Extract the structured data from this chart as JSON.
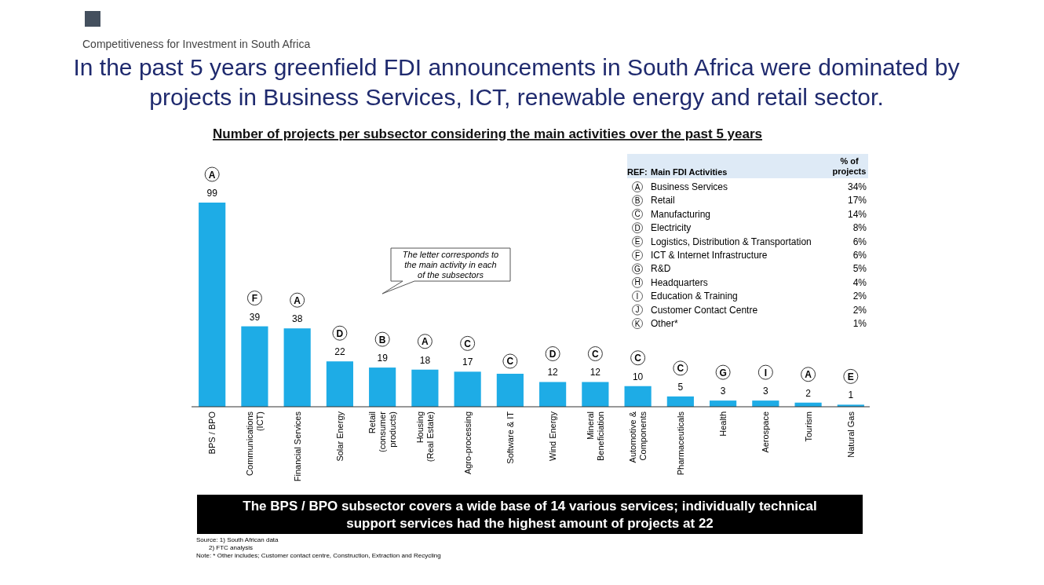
{
  "chart_data": [
    {
      "type": "bar",
      "title": "In the past 5 years greenfield FDI announcements in South Africa were dominated by projects in Business Services, ICT, renewable energy and retail sector.",
      "subtitle": "Number of projects per subsector considering the main activities over the past 5 years",
      "categories": [
        "BPS / BPO",
        "Communications\n(ICT)",
        "Financial Services",
        "Solar Energy",
        "Retail\n(consumer\nproducts)",
        "Housing\n(Real Estate)",
        "Agro-processing",
        "Software & IT",
        "Wind Energy",
        "Mineral\nBeneficiation",
        "Automotive &\nComponents",
        "Pharmaceuticals",
        "Health",
        "Aerospace",
        "Tourism",
        "Natural Gas"
      ],
      "values": [
        99,
        39,
        38,
        22,
        19,
        18,
        17,
        16,
        12,
        12,
        10,
        5,
        3,
        3,
        2,
        1
      ],
      "value_labels": [
        "99",
        "39",
        "38",
        "22",
        "19",
        "18",
        "17",
        null,
        "12",
        "12",
        "10",
        "5",
        "3",
        "3",
        "2",
        "1"
      ],
      "color": "#1eace6",
      "annotations": [
        "Competitiveness for Investment in South Africa",
        "The letter corresponds to the main activity in each of the subsectors",
        "The BPS / BPO subsector covers a wide base of 14 various services; individually technical support services had the highest amount of projects at 22",
        "Source: 1) South African data",
        "2) FTC analysis",
        "Note: * Other includes; Customer contact centre, Construction, Extraction and Recycling",
        {
          "text": "A",
          "x": "BPS / BPO",
          "y": 99
        },
        {
          "text": "F",
          "x": "Communications\n(ICT)",
          "y": 39
        },
        {
          "text": "A",
          "x": "Financial Services",
          "y": 38
        },
        {
          "text": "D",
          "x": "Solar Energy",
          "y": 22
        },
        {
          "text": "B",
          "x": "Retail\n(consumer\nproducts)",
          "y": 19
        },
        {
          "text": "A",
          "x": "Housing\n(Real Estate)",
          "y": 18
        },
        {
          "text": "C",
          "x": "Agro-processing",
          "y": 17
        },
        {
          "text": "C",
          "x": "Software & IT",
          "y": 16
        },
        {
          "text": "D",
          "x": "Wind Energy",
          "y": 12
        },
        {
          "text": "C",
          "x": "Mineral\nBeneficiation",
          "y": 12
        },
        {
          "text": "C",
          "x": "Automotive &\nComponents",
          "y": 10
        },
        {
          "text": "C",
          "x": "Pharmaceuticals",
          "y": 5
        },
        {
          "text": "G",
          "x": "Health",
          "y": 3
        },
        {
          "text": "I",
          "x": "Aerospace",
          "y": 3
        },
        {
          "text": "A",
          "x": "Tourism",
          "y": 2
        },
        {
          "text": "E",
          "x": "Natural Gas",
          "y": 1
        }
      ]
    },
    {
      "type": "other",
      "categories": [
        "Business Services",
        "Retail",
        "Manufacturing",
        "Electricity",
        "Logistics, Distribution & Transportation",
        "ICT & Internet Infrastructure",
        "R&D",
        "Headquarters",
        "Education & Training",
        "Customer Contact Centre",
        "Other*"
      ],
      "value_labels": [
        "34%",
        "17%",
        "14%",
        "8%",
        "6%",
        "6%",
        "5%",
        "4%",
        "2%",
        "2%",
        "1%"
      ],
      "annotations": [
        "REF:",
        "Main FDI Activities",
        "% of projects",
        {
          "text": "A",
          "x": "Business Services"
        },
        {
          "text": "B",
          "x": "Retail"
        },
        {
          "text": "C",
          "x": "Manufacturing"
        },
        {
          "text": "D",
          "x": "Electricity"
        },
        {
          "text": "E",
          "x": "Logistics, Distribution & Transportation"
        },
        {
          "text": "F",
          "x": "ICT & Internet Infrastructure"
        },
        {
          "text": "G",
          "x": "R&D"
        },
        {
          "text": "H",
          "x": "Headquarters"
        },
        {
          "text": "I",
          "x": "Education & Training"
        },
        {
          "text": "J",
          "x": "Customer Contact Centre"
        },
        {
          "text": "K",
          "x": "Other*"
        }
      ]
    }
  ]
}
